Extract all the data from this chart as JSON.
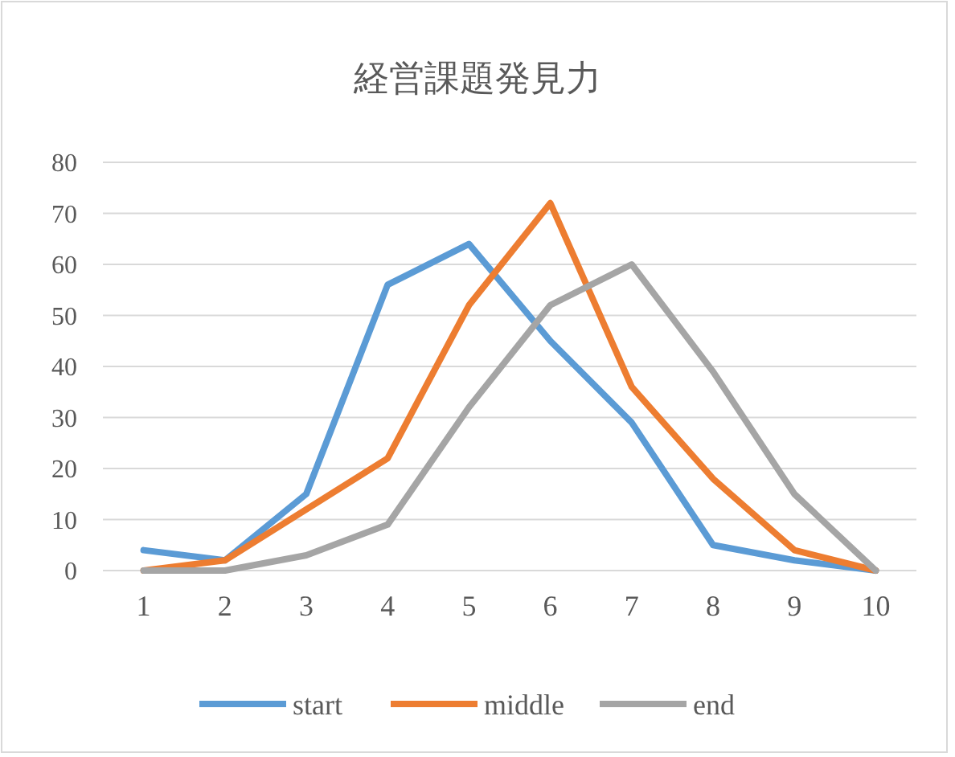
{
  "chart_data": {
    "type": "line",
    "title": "経営課題発見力",
    "categories": [
      "1",
      "2",
      "3",
      "4",
      "5",
      "6",
      "7",
      "8",
      "9",
      "10"
    ],
    "series": [
      {
        "name": "start",
        "color": "#5b9bd5",
        "values": [
          4,
          2,
          15,
          56,
          64,
          45,
          29,
          5,
          2,
          0
        ]
      },
      {
        "name": "middle",
        "color": "#ed7d31",
        "values": [
          0,
          2,
          12,
          22,
          52,
          72,
          36,
          18,
          4,
          0
        ]
      },
      {
        "name": "end",
        "color": "#a5a5a5",
        "values": [
          0,
          0,
          3,
          9,
          32,
          52,
          60,
          39,
          15,
          0
        ]
      }
    ],
    "ylim": [
      0,
      80
    ],
    "yticks": [
      0,
      10,
      20,
      30,
      40,
      50,
      60,
      70,
      80
    ],
    "grid": "y",
    "legend": "bottom",
    "marker": "none",
    "line_style": "solid"
  }
}
